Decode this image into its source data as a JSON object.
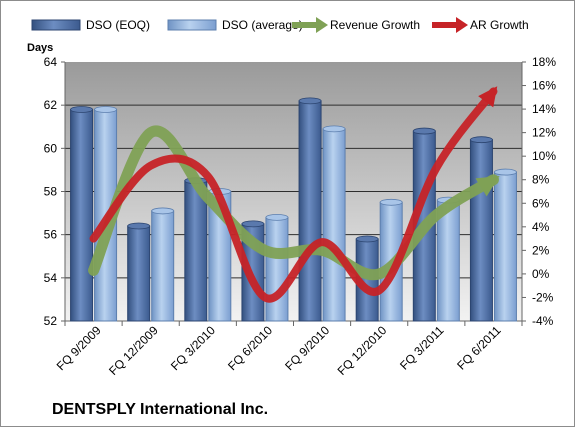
{
  "chart_data": {
    "type": "bar",
    "title": "",
    "subtitle": "",
    "footer_label": "DENTSPLY International Inc.",
    "ylabel": "Days",
    "ylim": [
      52,
      64
    ],
    "y_ticks": [
      "52",
      "54",
      "56",
      "58",
      "60",
      "62",
      "64"
    ],
    "y2lim": [
      -4,
      18
    ],
    "y2_ticks": [
      "-4%",
      "-2%",
      "0%",
      "2%",
      "4%",
      "6%",
      "8%",
      "10%",
      "12%",
      "14%",
      "16%",
      "18%"
    ],
    "categories": [
      "FQ 9/2009",
      "FQ 12/2009",
      "FQ 3/2010",
      "FQ 6/2010",
      "FQ 9/2010",
      "FQ 12/2010",
      "FQ 3/2011",
      "FQ 6/2011"
    ],
    "grid": true,
    "legend_position": "top",
    "series": [
      {
        "name": "DSO (EOQ)",
        "kind": "bar",
        "axis": "left",
        "color": "#4f6fa3",
        "values": [
          61.8,
          56.4,
          58.5,
          56.5,
          62.2,
          55.8,
          60.8,
          60.4
        ]
      },
      {
        "name": "DSO (average)",
        "kind": "bar",
        "axis": "left",
        "color": "#8fb3dd",
        "values": [
          61.8,
          57.1,
          58.0,
          56.8,
          60.9,
          57.5,
          57.6,
          58.9
        ]
      },
      {
        "name": "Revenue Growth",
        "kind": "line",
        "axis": "right",
        "unit": "%",
        "color": "#7fa155",
        "values": [
          0.3,
          12.0,
          6.5,
          2.0,
          2.0,
          0.0,
          5.0,
          8.0
        ]
      },
      {
        "name": "AR Growth",
        "kind": "line",
        "axis": "right",
        "unit": "%",
        "color": "#c62327",
        "values": [
          3.0,
          9.2,
          8.3,
          -2.0,
          2.7,
          -1.4,
          9.0,
          15.5
        ]
      }
    ],
    "colors": {
      "plot_gradient_top": "#9a9a9a",
      "plot_gradient_bottom": "#f2f2f2",
      "gridline": "#2e2e2e",
      "frame": "#8c8c8c"
    }
  }
}
